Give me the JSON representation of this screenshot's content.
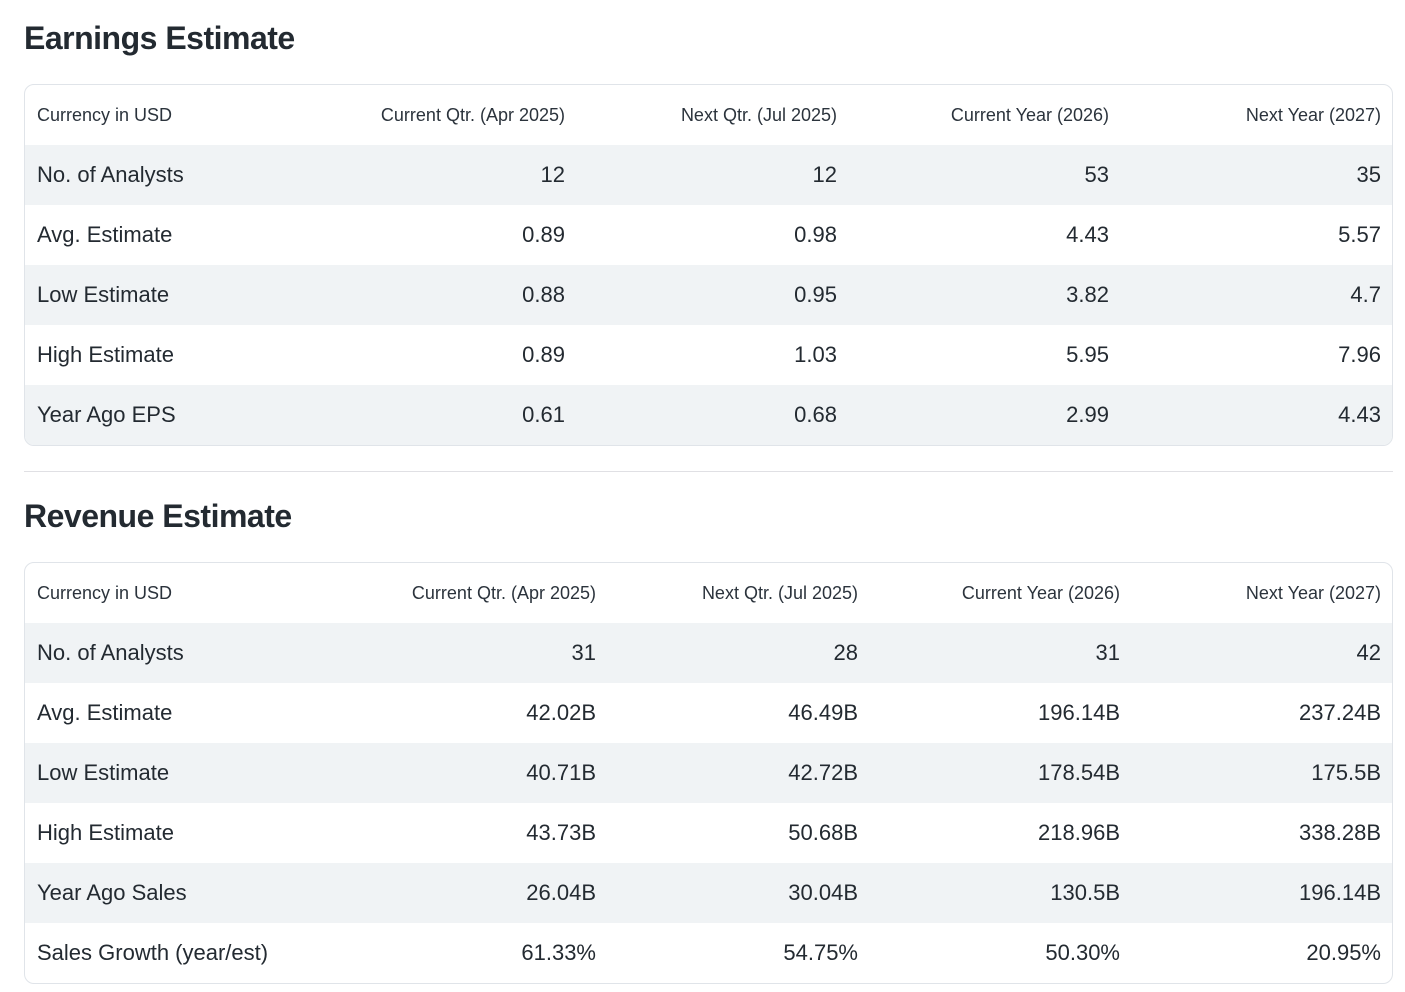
{
  "colors": {
    "background": "#ffffff",
    "stripe": "#f0f3f5",
    "card_border": "#e0e4e9",
    "divider": "#e0e0e4",
    "text_primary": "#232a31",
    "text_header": "#2b333c"
  },
  "sections": [
    {
      "title": "Earnings Estimate",
      "table": {
        "columns": [
          "Currency in USD",
          "Current Qtr. (Apr 2025)",
          "Next Qtr. (Jul 2025)",
          "Current Year (2026)",
          "Next Year (2027)"
        ],
        "rows": [
          {
            "label": "No. of Analysts",
            "values": [
              "12",
              "12",
              "53",
              "35"
            ]
          },
          {
            "label": "Avg. Estimate",
            "values": [
              "0.89",
              "0.98",
              "4.43",
              "5.57"
            ]
          },
          {
            "label": "Low Estimate",
            "values": [
              "0.88",
              "0.95",
              "3.82",
              "4.7"
            ]
          },
          {
            "label": "High Estimate",
            "values": [
              "0.89",
              "1.03",
              "5.95",
              "7.96"
            ]
          },
          {
            "label": "Year Ago EPS",
            "values": [
              "0.61",
              "0.68",
              "2.99",
              "4.43"
            ]
          }
        ]
      }
    },
    {
      "title": "Revenue Estimate",
      "table": {
        "columns": [
          "Currency in USD",
          "Current Qtr. (Apr 2025)",
          "Next Qtr. (Jul 2025)",
          "Current Year (2026)",
          "Next Year (2027)"
        ],
        "rows": [
          {
            "label": "No. of Analysts",
            "values": [
              "31",
              "28",
              "31",
              "42"
            ]
          },
          {
            "label": "Avg. Estimate",
            "values": [
              "42.02B",
              "46.49B",
              "196.14B",
              "237.24B"
            ]
          },
          {
            "label": "Low Estimate",
            "values": [
              "40.71B",
              "42.72B",
              "178.54B",
              "175.5B"
            ]
          },
          {
            "label": "High Estimate",
            "values": [
              "43.73B",
              "50.68B",
              "218.96B",
              "338.28B"
            ]
          },
          {
            "label": "Year Ago Sales",
            "values": [
              "26.04B",
              "30.04B",
              "130.5B",
              "196.14B"
            ]
          },
          {
            "label": "Sales Growth (year/est)",
            "values": [
              "61.33%",
              "54.75%",
              "50.30%",
              "20.95%"
            ]
          }
        ]
      }
    }
  ]
}
